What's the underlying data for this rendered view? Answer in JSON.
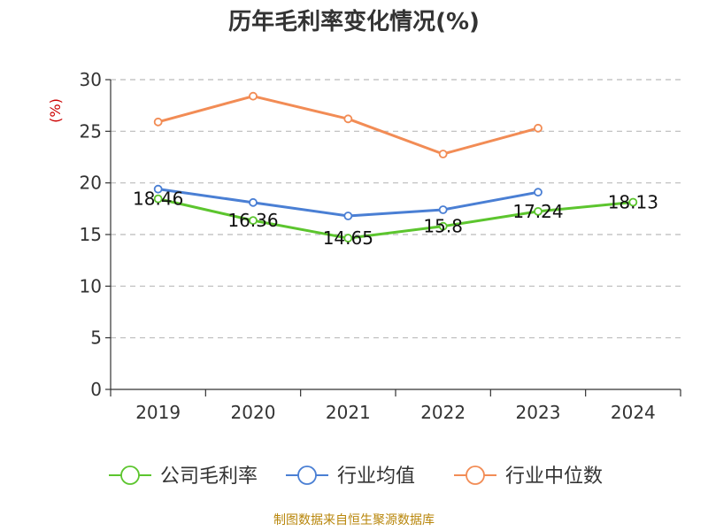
{
  "chart_data": {
    "type": "line",
    "title": "历年毛利率变化情况(%)",
    "ylabel": "(%)",
    "xlabel": "",
    "categories": [
      "2019",
      "2020",
      "2021",
      "2022",
      "2023",
      "2024"
    ],
    "ylim": [
      0,
      30
    ],
    "yticks": [
      0,
      5,
      10,
      15,
      20,
      25,
      30
    ],
    "grid": true,
    "legend_position": "bottom",
    "series": [
      {
        "name": "公司毛利率",
        "color": "#5cc52e",
        "values": [
          18.46,
          16.36,
          14.65,
          15.8,
          17.24,
          18.13
        ],
        "labels": [
          "18.46",
          "16.36",
          "14.65",
          "15.8",
          "17.24",
          "18.13"
        ]
      },
      {
        "name": "行业均值",
        "color": "#4a7fd4",
        "values": [
          19.4,
          18.1,
          16.8,
          17.4,
          19.1,
          null
        ]
      },
      {
        "name": "行业中位数",
        "color": "#f28c55",
        "values": [
          25.9,
          28.4,
          26.2,
          22.8,
          25.3,
          null
        ]
      }
    ]
  },
  "footer": {
    "source": "制图数据来自恒生聚源数据库",
    "source_color": "#b8860b"
  },
  "style": {
    "axis_color": "#333333",
    "grid_color": "#bbbbbb",
    "unit_color": "#cc0000"
  }
}
